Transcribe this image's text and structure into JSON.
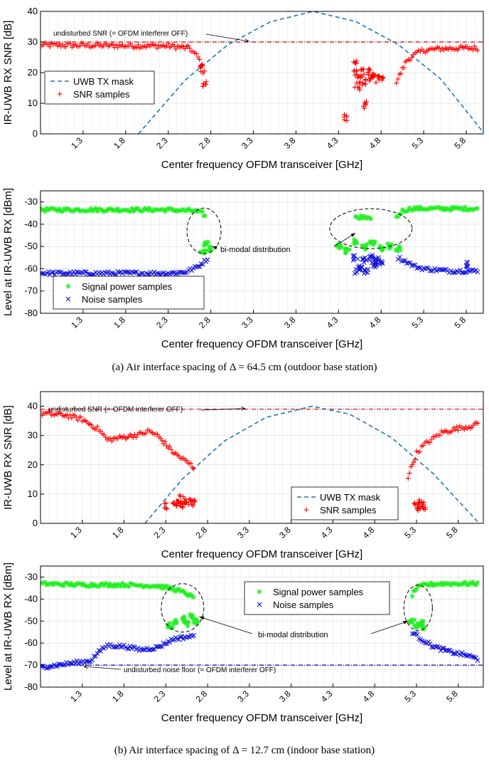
{
  "caption_a": "(a) Air interface spacing of Δ = 64.5 cm (outdoor base station)",
  "caption_b": "(b) Air interface spacing of Δ = 12.7 cm (indoor base station)",
  "colors": {
    "mask": "#1f77b4",
    "snr": "#ff0000",
    "signal": "#22ee22",
    "noise": "#1010dd",
    "ref": "#cc0000",
    "noise_ref": "#0000aa"
  },
  "chart_data": [
    {
      "type": "scatter",
      "subplot": "a-top",
      "xlabel": "Center frequency OFDM transceiver [GHz]",
      "ylabel": "IR-UWB RX SNR [dB]",
      "xlim": [
        0.8,
        6.0
      ],
      "ylim": [
        0,
        40
      ],
      "xticks": [
        "1.3",
        "1.8",
        "2.3",
        "2.8",
        "3.3",
        "3.8",
        "4.3",
        "4.8",
        "5.3",
        "5.8"
      ],
      "yticks": [
        "0",
        "10",
        "20",
        "30",
        "40"
      ],
      "grid": true,
      "legend_position": "mid-left",
      "reference_line": {
        "value": 30,
        "label": "undisturbed SNR (= OFDM interferer OFF)"
      },
      "series": [
        {
          "name": "UWB TX mask",
          "kind": "dashed-line",
          "x": [
            1.95,
            2.5,
            3.0,
            3.5,
            4.0,
            4.5,
            5.0,
            5.5,
            6.0
          ],
          "values": [
            0,
            17.6,
            29.1,
            36.6,
            40.0,
            36.7,
            29.2,
            17.9,
            0.5
          ]
        },
        {
          "name": "SNR samples",
          "kind": "marker-plus",
          "segments": [
            {
              "x": [
                0.8,
                1.3,
                1.8,
                2.3,
                2.55,
                2.65,
                2.7,
                2.72
              ],
              "values": [
                29,
                28.9,
                28.8,
                28.7,
                28,
                25,
                22,
                19
              ]
            },
            {
              "x": [
                4.98,
                5.05,
                5.1,
                5.2,
                5.3,
                5.5,
                5.7,
                5.95
              ],
              "values": [
                17,
                21,
                24,
                26,
                27.3,
                27.8,
                28,
                28
              ]
            }
          ],
          "points": [
            [
              2.73,
              16.5
            ],
            [
              2.7,
              21
            ],
            [
              4.38,
              5.5
            ],
            [
              4.5,
              23.5
            ],
            [
              4.52,
              15.5
            ],
            [
              4.5,
              19.5
            ],
            [
              4.55,
              18
            ],
            [
              4.58,
              20
            ],
            [
              4.6,
              17
            ],
            [
              4.62,
              9.5
            ],
            [
              4.65,
              21
            ],
            [
              4.68,
              18
            ],
            [
              4.7,
              19
            ],
            [
              4.75,
              18
            ],
            [
              4.8,
              18.5
            ]
          ]
        }
      ]
    },
    {
      "type": "scatter",
      "subplot": "a-bottom",
      "xlabel": "Center frequency OFDM transceiver [GHz]",
      "ylabel": "Level at IR-UWB RX [dBm]",
      "xlim": [
        0.8,
        6.0
      ],
      "ylim": [
        -80,
        -25
      ],
      "xticks": [
        "1.3",
        "1.8",
        "2.3",
        "2.8",
        "3.3",
        "3.8",
        "4.3",
        "4.8",
        "5.3",
        "5.8"
      ],
      "yticks": [
        "-30",
        "-40",
        "-50",
        "-60",
        "-70",
        "-80"
      ],
      "grid": true,
      "legend_position": "bottom-left",
      "annotation": "bi-modal distribution",
      "series": [
        {
          "name": "Signal power samples",
          "kind": "marker-asterisk",
          "segments": [
            {
              "x": [
                0.8,
                1.3,
                1.8,
                2.3,
                2.6,
                2.7,
                2.75
              ],
              "values": [
                -33.5,
                -33.5,
                -33.5,
                -33.5,
                -34,
                -35,
                -37
              ]
            },
            {
              "x": [
                4.98,
                5.05,
                5.15,
                5.3,
                5.6,
                5.95
              ],
              "values": [
                -37,
                -34,
                -33,
                -33,
                -33,
                -33
              ]
            },
            {
              "x": [
                4.5,
                4.6,
                4.7
              ],
              "values": [
                -37,
                -36.5,
                -37
              ]
            }
          ],
          "points": [
            [
              2.7,
              -52
            ],
            [
              2.75,
              -49
            ],
            [
              2.78,
              -51
            ],
            [
              4.3,
              -50
            ],
            [
              4.4,
              -52
            ],
            [
              4.5,
              -48
            ],
            [
              4.6,
              -50
            ],
            [
              4.7,
              -49
            ],
            [
              4.8,
              -51
            ],
            [
              4.9,
              -50
            ],
            [
              5.0,
              -51
            ]
          ]
        },
        {
          "name": "Noise samples",
          "kind": "marker-x",
          "segments": [
            {
              "x": [
                0.8,
                1.3,
                1.8,
                2.3,
                2.5,
                2.65,
                2.78
              ],
              "values": [
                -62,
                -62,
                -62,
                -62,
                -61.5,
                -59,
                -55
              ]
            },
            {
              "x": [
                5.0,
                5.1,
                5.2,
                5.3,
                5.6,
                5.95
              ],
              "values": [
                -55,
                -57,
                -59,
                -60,
                -61,
                -61
              ]
            }
          ],
          "points": [
            [
              4.5,
              -55
            ],
            [
              4.55,
              -59
            ],
            [
              4.6,
              -56
            ],
            [
              4.62,
              -61
            ],
            [
              4.68,
              -55
            ],
            [
              4.72,
              -58
            ],
            [
              4.76,
              -56
            ],
            [
              4.8,
              -57
            ],
            [
              4.52,
              -61
            ],
            [
              5.8,
              -58
            ]
          ]
        }
      ]
    },
    {
      "type": "scatter",
      "subplot": "b-top",
      "xlabel": "Center frequency OFDM transceiver [GHz]",
      "ylabel": "IR-UWB RX SNR [dB]",
      "xlim": [
        0.8,
        6.1
      ],
      "ylim": [
        0,
        45
      ],
      "xticks": [
        "1.3",
        "1.8",
        "2.3",
        "2.8",
        "3.3",
        "3.8",
        "4.3",
        "4.8",
        "5.3",
        "5.8"
      ],
      "yticks": [
        "0",
        "10",
        "20",
        "30",
        "40"
      ],
      "grid": true,
      "legend_position": "bottom-right",
      "reference_line": {
        "value": 39,
        "label": "undisturbed SNR (= OFDM interferer OFF)"
      },
      "series": [
        {
          "name": "UWB TX mask",
          "kind": "dashed-line",
          "x": [
            2.05,
            2.5,
            3.0,
            3.5,
            4.05,
            4.5,
            5.0,
            5.5,
            6.05
          ],
          "values": [
            0,
            15.2,
            28.1,
            36.2,
            40,
            37.3,
            29.3,
            17.0,
            0
          ]
        },
        {
          "name": "SNR samples",
          "kind": "marker-plus",
          "segments": [
            {
              "x": [
                0.8,
                1.1,
                1.3,
                1.5,
                1.6,
                1.8,
                2.0,
                2.1,
                2.2,
                2.4,
                2.6,
                2.65
              ],
              "values": [
                37.5,
                37,
                35.5,
                32,
                28.5,
                29.5,
                30.5,
                31.5,
                30,
                24,
                20,
                18.5
              ]
            },
            {
              "x": [
                5.2,
                5.25,
                5.3,
                5.4,
                5.5,
                5.6,
                5.8,
                6.0,
                6.05
              ],
              "values": [
                16,
                20,
                24,
                27,
                29,
                31,
                32.5,
                33.5,
                35
              ]
            }
          ],
          "points": [
            [
              2.3,
              6
            ],
            [
              2.4,
              6.5
            ],
            [
              2.45,
              7
            ],
            [
              2.5,
              6.5
            ],
            [
              2.55,
              7.5
            ],
            [
              2.6,
              7
            ],
            [
              2.62,
              8
            ],
            [
              2.48,
              8.5
            ],
            [
              5.3,
              6.5
            ],
            [
              5.33,
              5.5
            ],
            [
              5.36,
              7
            ],
            [
              5.38,
              6
            ]
          ]
        }
      ]
    },
    {
      "type": "scatter",
      "subplot": "b-bottom",
      "xlabel": "Center frequency OFDM transceiver [GHz]",
      "ylabel": "Level at IR-UWB RX [dBm]",
      "xlim": [
        0.8,
        6.1
      ],
      "ylim": [
        -80,
        -25
      ],
      "xticks": [
        "1.3",
        "1.8",
        "2.3",
        "2.8",
        "3.3",
        "3.8",
        "4.3",
        "4.8",
        "5.3",
        "5.8"
      ],
      "yticks": [
        "-30",
        "-40",
        "-50",
        "-60",
        "-70",
        "-80"
      ],
      "grid": true,
      "legend_position": "top-right",
      "annotation": "bi-modal distribution",
      "reference_line": {
        "value": -70,
        "label": "undisturbed noise floor (= OFDM interferer OFF)"
      },
      "series": [
        {
          "name": "Signal power samples",
          "kind": "marker-asterisk",
          "segments": [
            {
              "x": [
                0.8,
                1.3,
                1.8,
                2.2,
                2.4,
                2.55,
                2.65
              ],
              "values": [
                -33,
                -33.5,
                -33.5,
                -34,
                -35.5,
                -37.5,
                -40
              ]
            },
            {
              "x": [
                5.25,
                5.3,
                5.4,
                5.6,
                5.9,
                6.05
              ],
              "values": [
                -38,
                -35,
                -33.5,
                -33,
                -33,
                -33
              ]
            }
          ],
          "points": [
            [
              2.35,
              -52
            ],
            [
              2.4,
              -50
            ],
            [
              2.5,
              -49
            ],
            [
              2.55,
              -51
            ],
            [
              2.6,
              -48
            ],
            [
              2.65,
              -50
            ],
            [
              5.25,
              -50
            ],
            [
              5.3,
              -52
            ],
            [
              5.35,
              -51
            ],
            [
              5.38,
              -53
            ]
          ]
        },
        {
          "name": "Noise samples",
          "kind": "marker-x",
          "segments": [
            {
              "x": [
                0.8,
                1.0,
                1.2,
                1.4,
                1.5,
                1.6,
                1.8,
                2.0,
                2.2,
                2.4,
                2.6,
                2.65
              ],
              "values": [
                -71,
                -70,
                -69,
                -68,
                -64,
                -61,
                -61.5,
                -63,
                -62,
                -58,
                -57,
                -56.5
              ]
            },
            {
              "x": [
                5.25,
                5.35,
                5.5,
                5.7,
                5.9,
                6.05
              ],
              "values": [
                -55,
                -58,
                -61.5,
                -64,
                -65.5,
                -67.5
              ]
            }
          ]
        }
      ]
    }
  ]
}
